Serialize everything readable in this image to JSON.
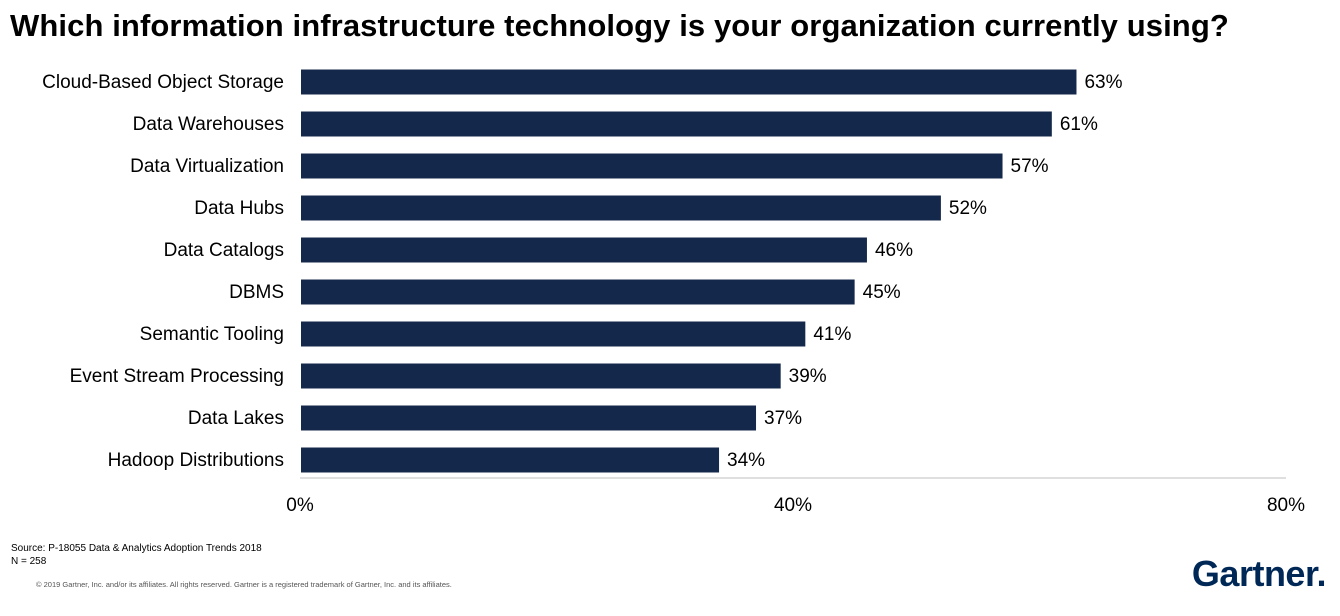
{
  "header": {
    "title": "Which information infrastructure technology is your organization currently using?"
  },
  "footer": {
    "source": "Source: P-18055 Data & Analytics Adoption Trends 2018",
    "sample": "N = 258",
    "copyright": "© 2019 Gartner, Inc. and/or its affiliates. All rights reserved. Gartner is a registered trademark of Gartner, Inc. and its affiliates.",
    "logo": "Gartner",
    "logo_dot": "."
  },
  "colors": {
    "bar": "#14284b",
    "axis": "#bfbfbf",
    "logo": "#002856"
  },
  "chart_data": {
    "type": "bar",
    "orientation": "horizontal",
    "title": "Which information infrastructure technology is your organization currently using?",
    "xlabel": "",
    "ylabel": "",
    "categories": [
      "Cloud-Based Object Storage",
      "Data Warehouses",
      "Data Virtualization",
      "Data Hubs",
      "Data Catalogs",
      "DBMS",
      "Semantic Tooling",
      "Event Stream Processing",
      "Data Lakes",
      "Hadoop Distributions"
    ],
    "values": [
      63,
      61,
      57,
      52,
      46,
      45,
      41,
      39,
      37,
      34
    ],
    "value_labels": [
      "63%",
      "61%",
      "57%",
      "52%",
      "46%",
      "45%",
      "41%",
      "39%",
      "37%",
      "34%"
    ],
    "xlim": [
      0,
      80
    ],
    "xticks": [
      0,
      40,
      80
    ],
    "xtick_labels": [
      "0%",
      "40%",
      "80%"
    ],
    "grid": false,
    "legend": "none"
  }
}
